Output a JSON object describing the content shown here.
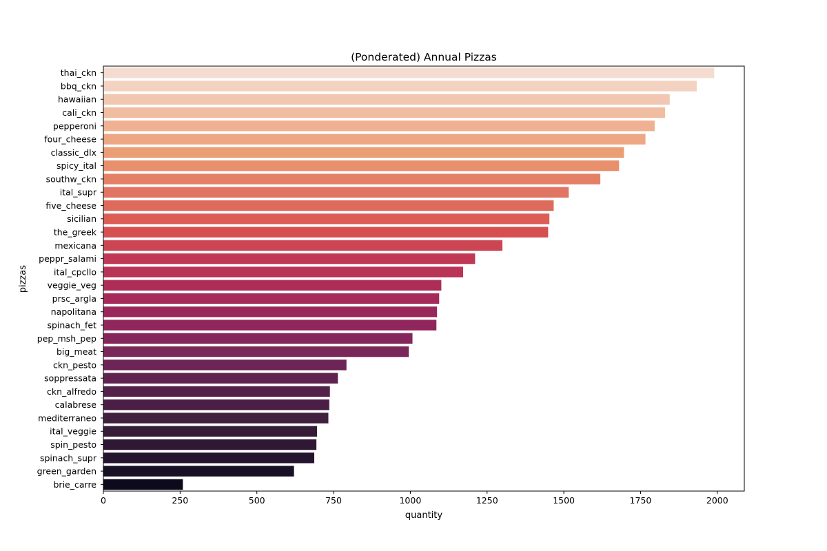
{
  "chart_data": {
    "type": "bar",
    "orientation": "horizontal",
    "title": "(Ponderated) Annual Pizzas",
    "xlabel": "quantity",
    "ylabel": "pizzas",
    "xlim": [
      0,
      2088
    ],
    "xticks": [
      0,
      250,
      500,
      750,
      1000,
      1250,
      1500,
      1750,
      2000
    ],
    "grid": false,
    "legend": "none",
    "palette": "rocket",
    "categories": [
      "thai_ckn",
      "bbq_ckn",
      "hawaiian",
      "cali_ckn",
      "pepperoni",
      "four_cheese",
      "classic_dlx",
      "spicy_ital",
      "southw_ckn",
      "ital_supr",
      "five_cheese",
      "sicilian",
      "the_greek",
      "mexicana",
      "peppr_salami",
      "ital_cpcllo",
      "veggie_veg",
      "prsc_argla",
      "napolitana",
      "spinach_fet",
      "pep_msh_pep",
      "big_meat",
      "ckn_pesto",
      "soppressata",
      "ckn_alfredo",
      "calabrese",
      "mediterraneo",
      "ital_veggie",
      "spin_pesto",
      "spinach_supr",
      "green_garden",
      "brie_carre"
    ],
    "values": [
      1990,
      1933,
      1845,
      1830,
      1796,
      1766,
      1696,
      1680,
      1619,
      1516,
      1467,
      1453,
      1449,
      1300,
      1211,
      1172,
      1101,
      1094,
      1087,
      1085,
      1007,
      995,
      792,
      764,
      738,
      736,
      733,
      696,
      694,
      687,
      621,
      259
    ],
    "colors": [
      "#f5dcd0",
      "#f4d2c1",
      "#f2c7b1",
      "#f1bda1",
      "#efb192",
      "#eda784",
      "#eb9d76",
      "#e88f6b",
      "#e48066",
      "#e17563",
      "#de6a5b",
      "#db5d56",
      "#d65052",
      "#cc4552",
      "#c13854",
      "#b93456",
      "#ad2d57",
      "#a52a59",
      "#9a275b",
      "#90265b",
      "#84265b",
      "#7a275a",
      "#6d2557",
      "#602350",
      "#54214a",
      "#4b1f45",
      "#41203f",
      "#361c37",
      "#2e1833",
      "#25142d",
      "#181024",
      "#0d0a1b"
    ]
  }
}
